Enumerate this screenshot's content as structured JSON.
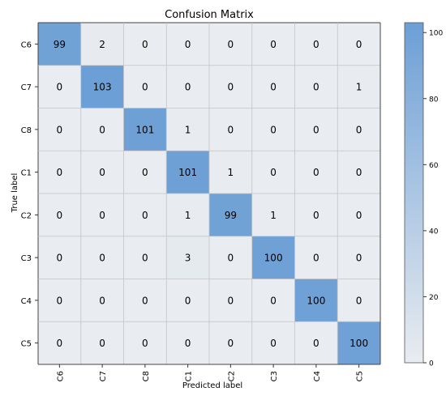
{
  "chart_data": {
    "type": "heatmap",
    "title": "Confusion Matrix",
    "xlabel": "Predicted label",
    "ylabel": "True label",
    "row_labels": [
      "C6",
      "C7",
      "C8",
      "C1",
      "C2",
      "C3",
      "C4",
      "C5"
    ],
    "col_labels": [
      "C6",
      "C7",
      "C8",
      "C1",
      "C2",
      "C3",
      "C4",
      "C5"
    ],
    "values": [
      [
        99,
        2,
        0,
        0,
        0,
        0,
        0,
        0
      ],
      [
        0,
        103,
        0,
        0,
        0,
        0,
        0,
        1
      ],
      [
        0,
        0,
        101,
        1,
        0,
        0,
        0,
        0
      ],
      [
        0,
        0,
        0,
        101,
        1,
        0,
        0,
        0
      ],
      [
        0,
        0,
        0,
        1,
        99,
        1,
        0,
        0
      ],
      [
        0,
        0,
        0,
        3,
        0,
        100,
        0,
        0
      ],
      [
        0,
        0,
        0,
        0,
        0,
        0,
        100,
        0
      ],
      [
        0,
        0,
        0,
        0,
        0,
        0,
        0,
        100
      ]
    ],
    "colorbar": {
      "range": [
        0,
        103
      ],
      "ticks": [
        "0",
        "20",
        "40",
        "60",
        "80",
        "100"
      ],
      "low_color": "#e9ecf0",
      "high_color": "#6c9fd5"
    },
    "grid": true
  }
}
